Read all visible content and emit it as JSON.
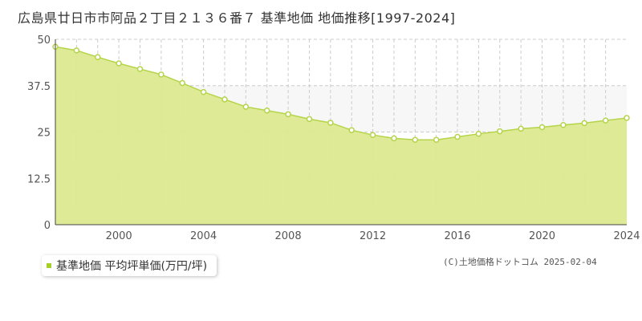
{
  "title": "広島県廿日市市阿品２丁目２１３６番７ 基準地価 地価推移[1997-2024]",
  "legend": {
    "label": "基準地価 平均坪単価(万円/坪)"
  },
  "copyright": "(C)土地価格ドットコム 2025-02-04",
  "colors": {
    "fill": "#dce98f",
    "line": "#b5d44a",
    "marker_fill": "#ffffff",
    "marker_stroke": "#b5d44a",
    "grid": "#cccccc",
    "upper_band": "#f7f7f7"
  },
  "chart_data": {
    "type": "area",
    "xlabel": "",
    "ylabel": "",
    "xlim": [
      1997,
      2024
    ],
    "ylim": [
      0,
      50
    ],
    "grid": true,
    "legend_position": "bottom-left",
    "x_ticks": [
      "2000",
      "2004",
      "2008",
      "2012",
      "2016",
      "2020",
      "2024"
    ],
    "y_ticks": [
      "0",
      "12.5",
      "25",
      "37.5",
      "50"
    ],
    "series": [
      {
        "name": "基準地価 平均坪単価(万円/坪)",
        "x": [
          1997,
          1998,
          1999,
          2000,
          2001,
          2002,
          2003,
          2004,
          2005,
          2006,
          2007,
          2008,
          2009,
          2010,
          2011,
          2012,
          2013,
          2014,
          2015,
          2016,
          2017,
          2018,
          2019,
          2020,
          2021,
          2022,
          2023,
          2024
        ],
        "values": [
          48.0,
          47.0,
          45.2,
          43.5,
          42.0,
          40.5,
          38.2,
          35.8,
          33.8,
          31.8,
          30.8,
          29.8,
          28.5,
          27.5,
          25.5,
          24.2,
          23.3,
          22.9,
          22.9,
          23.7,
          24.5,
          25.2,
          25.9,
          26.3,
          26.9,
          27.4,
          28.1,
          28.8
        ]
      }
    ]
  }
}
